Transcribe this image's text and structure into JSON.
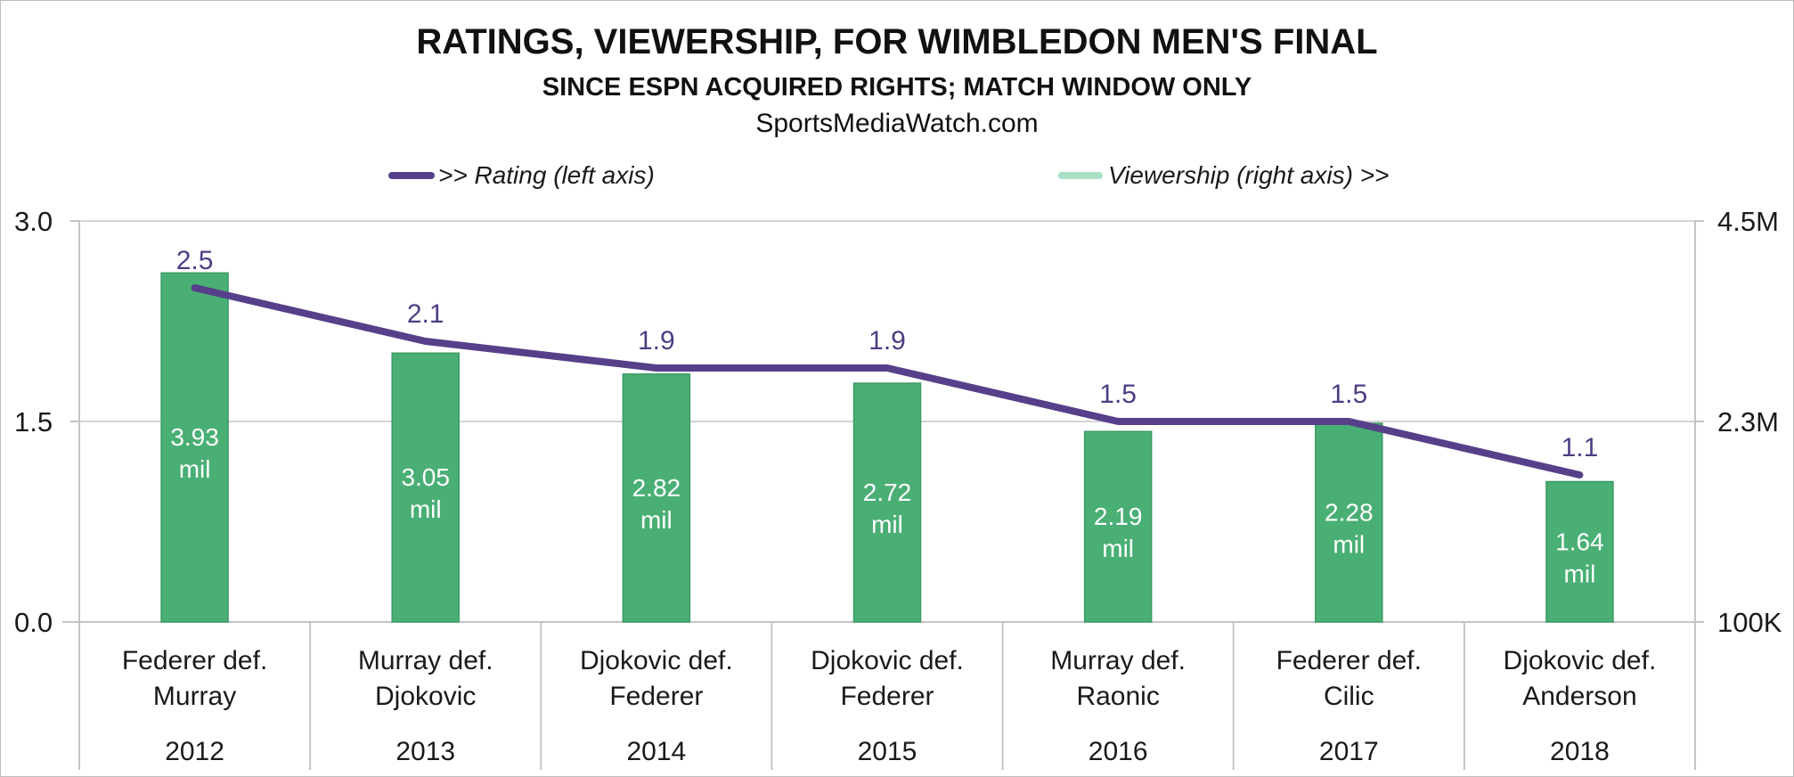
{
  "chart_data": {
    "type": "bar",
    "title": "RATINGS, VIEWERSHIP, FOR WIMBLEDON MEN'S FINAL",
    "subtitle": "SINCE ESPN ACQUIRED RIGHTS; MATCH WINDOW ONLY",
    "source": "SportsMediaWatch.com",
    "legend": {
      "placement": "top",
      "rating": ">> Rating (left axis)",
      "viewership": "Viewership (right axis) >>"
    },
    "matchups": [
      [
        "Federer def.",
        "Murray"
      ],
      [
        "Murray def.",
        "Djokovic"
      ],
      [
        "Djokovic def.",
        "Federer"
      ],
      [
        "Djokovic def.",
        "Federer"
      ],
      [
        "Murray def.",
        "Raonic"
      ],
      [
        "Federer def.",
        "Cilic"
      ],
      [
        "Djokovic def.",
        "Anderson"
      ]
    ],
    "years": [
      "2012",
      "2013",
      "2014",
      "2015",
      "2016",
      "2017",
      "2018"
    ],
    "series": [
      {
        "name": "Rating (left axis)",
        "type": "line",
        "axis": "left",
        "color": "#564089",
        "values": [
          2.5,
          2.1,
          1.9,
          1.9,
          1.5,
          1.5,
          1.1
        ],
        "labels": [
          "2.5",
          "2.1",
          "1.9",
          "1.9",
          "1.5",
          "1.5",
          "1.1"
        ]
      },
      {
        "name": "Viewership (right axis)",
        "type": "bar",
        "axis": "right",
        "color": "#4aaf75",
        "values": [
          3.93,
          3.05,
          2.82,
          2.72,
          2.19,
          2.28,
          1.64
        ],
        "labels": [
          [
            "3.93",
            "mil"
          ],
          [
            "3.05",
            "mil"
          ],
          [
            "2.82",
            "mil"
          ],
          [
            "2.72",
            "mil"
          ],
          [
            "2.19",
            "mil"
          ],
          [
            "2.28",
            "mil"
          ],
          [
            "1.64",
            "mil"
          ]
        ]
      }
    ],
    "y_left": {
      "range": [
        0,
        3.0
      ],
      "ticks": [
        "0.0",
        "1.5",
        "3.0"
      ],
      "tick_values": [
        0,
        1.5,
        3.0
      ]
    },
    "y_right": {
      "range": [
        0.1,
        4.5
      ],
      "ticks": [
        "100K",
        "2.3M",
        "4.5M"
      ],
      "tick_values": [
        0.1,
        2.3,
        4.5
      ],
      "unit": "millions"
    },
    "grid": true,
    "colors": {
      "line": "#564089",
      "bar": "#4aaf75",
      "bar_border": "#3d9a64",
      "legend_bar": "#a8e0c6",
      "rating_label": "#4f3d85",
      "grid": "#d4d4d4"
    }
  }
}
